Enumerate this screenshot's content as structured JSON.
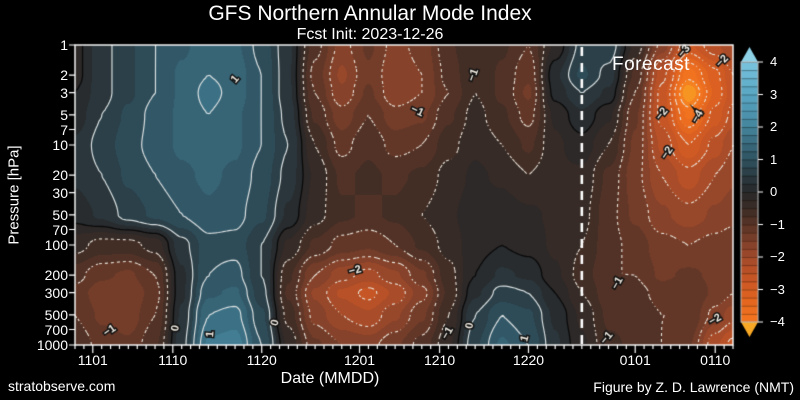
{
  "header": {
    "title": "GFS Northern Annular Mode Index",
    "subtitle": "Fcst Init: 2023-12-26"
  },
  "footer": {
    "left": "stratobserve.com",
    "right": "Figure by Z. D. Lawrence (NMT)"
  },
  "chart_data": {
    "type": "heatmap",
    "title": "GFS Northern Annular Mode Index",
    "subtitle": "Fcst Init: 2023-12-26",
    "xlabel": "Date (MMDD)",
    "ylabel": "Pressure [hPa]",
    "forecast_label": "Forecast",
    "x_day0_date": "2023-10-30",
    "x_total_days": 74,
    "x_minor_every_days": 1,
    "forecast_line_day": 57,
    "x_ticks": [
      {
        "day": 2,
        "label": "1101"
      },
      {
        "day": 11,
        "label": "1110"
      },
      {
        "day": 21,
        "label": "1120"
      },
      {
        "day": 32,
        "label": "1201"
      },
      {
        "day": 41,
        "label": "1210"
      },
      {
        "day": 51,
        "label": "1220"
      },
      {
        "day": 63,
        "label": "0101"
      },
      {
        "day": 72,
        "label": "0110"
      }
    ],
    "y_ticks": [
      {
        "p": 1,
        "label": "1"
      },
      {
        "p": 2,
        "label": "2"
      },
      {
        "p": 3,
        "label": "3"
      },
      {
        "p": 5,
        "label": "5"
      },
      {
        "p": 7,
        "label": "7"
      },
      {
        "p": 10,
        "label": "10"
      },
      {
        "p": 20,
        "label": "20"
      },
      {
        "p": 30,
        "label": "30"
      },
      {
        "p": 50,
        "label": "50"
      },
      {
        "p": 70,
        "label": "70"
      },
      {
        "p": 100,
        "label": "100"
      },
      {
        "p": 200,
        "label": "200"
      },
      {
        "p": 300,
        "label": "300"
      },
      {
        "p": 500,
        "label": "500"
      },
      {
        "p": 700,
        "label": "700"
      },
      {
        "p": 1000,
        "label": "1000"
      }
    ],
    "pressure_levels": [
      1,
      2,
      3,
      5,
      10,
      20,
      50,
      100,
      200,
      300,
      500,
      1000
    ],
    "grid_days": [
      0,
      3,
      6,
      9,
      12,
      15,
      18,
      21,
      24,
      27,
      30,
      33,
      36,
      39,
      42,
      45,
      48,
      51,
      54,
      57,
      60,
      63,
      66,
      69,
      72,
      74
    ],
    "values": [
      [
        -0.1,
        0.4,
        0.7,
        1.0,
        1.2,
        1.4,
        1.3,
        0.9,
        0.3,
        -0.9,
        -1.6,
        -1.2,
        -1.6,
        -1.4,
        -0.8,
        -0.5,
        -0.7,
        -1.0,
        -0.2,
        0.6,
        0.7,
        -0.3,
        -1.6,
        -2.8,
        -2.3,
        -2.0
      ],
      [
        -0.1,
        0.4,
        0.7,
        1.0,
        1.3,
        1.5,
        1.4,
        1.0,
        0.3,
        -1.1,
        -1.8,
        -1.3,
        -1.7,
        -1.5,
        -0.9,
        -0.5,
        -0.8,
        -1.2,
        0.2,
        0.8,
        0.4,
        -0.8,
        -2.4,
        -3.9,
        -3.1,
        -2.5
      ],
      [
        0.0,
        0.4,
        0.7,
        1.0,
        1.3,
        1.6,
        1.4,
        1.0,
        0.3,
        -1.0,
        -1.7,
        -1.2,
        -1.7,
        -1.5,
        -1.0,
        -0.5,
        -0.8,
        -1.3,
        0.1,
        0.5,
        0.2,
        -1.0,
        -2.6,
        -4.5,
        -3.2,
        -2.6
      ],
      [
        0.1,
        0.5,
        0.8,
        1.1,
        1.3,
        1.5,
        1.3,
        1.0,
        0.4,
        -0.8,
        -1.4,
        -1.0,
        -1.4,
        -1.3,
        -0.8,
        -0.4,
        -0.7,
        -1.1,
        -0.2,
        0.2,
        -0.2,
        -1.2,
        -2.6,
        -3.8,
        -2.9,
        -2.4
      ],
      [
        0.3,
        0.6,
        0.9,
        1.1,
        1.3,
        1.4,
        1.3,
        1.0,
        0.5,
        -0.5,
        -1.1,
        -0.8,
        -1.1,
        -1.0,
        -0.6,
        -0.3,
        -0.5,
        -0.8,
        -0.3,
        -0.1,
        -0.5,
        -1.3,
        -2.3,
        -3.0,
        -2.4,
        -2.0
      ],
      [
        0.3,
        0.5,
        0.8,
        1.0,
        1.2,
        1.3,
        1.2,
        0.9,
        0.4,
        -0.3,
        -0.8,
        -0.7,
        -0.8,
        -0.7,
        -0.4,
        -0.2,
        -0.3,
        -0.5,
        -0.3,
        -0.3,
        -0.8,
        -1.4,
        -2.0,
        -2.4,
        -2.0,
        -1.8
      ],
      [
        0.1,
        0.3,
        0.6,
        0.8,
        1.0,
        1.2,
        1.1,
        0.8,
        0.2,
        -0.4,
        -0.7,
        -0.8,
        -0.7,
        -0.5,
        -0.3,
        -0.1,
        -0.1,
        -0.2,
        -0.3,
        -0.4,
        -0.9,
        -1.3,
        -1.7,
        -1.9,
        -1.7,
        -1.6
      ],
      [
        -0.4,
        -0.6,
        -0.6,
        -0.4,
        0.4,
        0.9,
        0.9,
        0.5,
        -0.3,
        -0.8,
        -1.1,
        -1.2,
        -1.0,
        -0.7,
        -0.4,
        -0.1,
        0.0,
        -0.1,
        -0.3,
        -0.5,
        -0.9,
        -1.1,
        -1.4,
        -1.5,
        -1.4,
        -1.3
      ],
      [
        -0.9,
        -1.2,
        -1.3,
        -1.0,
        0.2,
        1.0,
        1.1,
        0.5,
        -0.7,
        -1.5,
        -1.9,
        -2.1,
        -1.8,
        -1.3,
        -0.6,
        0.0,
        0.3,
        0.2,
        -0.2,
        -0.6,
        -1.0,
        -1.0,
        -1.3,
        -1.2,
        -1.3,
        -1.4
      ],
      [
        -1.1,
        -1.4,
        -1.5,
        -1.1,
        0.2,
        1.2,
        1.3,
        0.6,
        -0.8,
        -1.8,
        -2.3,
        -2.6,
        -2.2,
        -1.6,
        -0.7,
        0.2,
        0.6,
        0.5,
        0.0,
        -0.5,
        -0.9,
        -0.9,
        -1.1,
        -1.0,
        -1.3,
        -1.5
      ],
      [
        -1.0,
        -1.3,
        -1.4,
        -1.0,
        0.3,
        1.5,
        1.6,
        0.8,
        -0.6,
        -1.6,
        -2.0,
        -2.2,
        -1.8,
        -1.3,
        -0.5,
        0.5,
        1.0,
        0.8,
        0.2,
        -0.3,
        -0.8,
        -0.8,
        -1.0,
        -1.0,
        -1.6,
        -1.9
      ],
      [
        -0.8,
        -1.1,
        -1.2,
        -0.8,
        0.4,
        1.8,
        1.9,
        1.0,
        -0.3,
        -1.2,
        -1.5,
        -1.6,
        -1.3,
        -0.9,
        -0.3,
        0.7,
        1.3,
        1.0,
        0.3,
        -0.2,
        -0.7,
        -0.8,
        -1.0,
        -1.2,
        -2.2,
        -2.6
      ]
    ],
    "fill_step": 0.25,
    "colormap_stops": [
      [
        -4.6,
        "#f9a825"
      ],
      [
        -4.0,
        "#f4761f"
      ],
      [
        -3.5,
        "#e96a1f"
      ],
      [
        -3.0,
        "#d65d22"
      ],
      [
        -2.5,
        "#c05326"
      ],
      [
        -2.0,
        "#a14a2a"
      ],
      [
        -1.5,
        "#7d402a"
      ],
      [
        -1.0,
        "#5a3427"
      ],
      [
        -0.5,
        "#3b2c25"
      ],
      [
        0.0,
        "#282829"
      ],
      [
        0.5,
        "#2a3a41"
      ],
      [
        1.0,
        "#2f5260"
      ],
      [
        1.5,
        "#3a6b7e"
      ],
      [
        2.0,
        "#44839b"
      ],
      [
        2.5,
        "#4f97b2"
      ],
      [
        3.0,
        "#58a5c2"
      ],
      [
        3.5,
        "#69b5d1"
      ],
      [
        4.0,
        "#7ac4de"
      ],
      [
        4.6,
        "#8ed2e8"
      ]
    ],
    "contour_levels": {
      "negative": [
        -4,
        -3.5,
        -3,
        -2.5,
        -2,
        -1.5,
        -1,
        -0.5
      ],
      "positive": [
        0.5,
        1,
        1.5,
        2
      ],
      "zero": 0
    },
    "contour_colors": {
      "negative": "#eae4da",
      "positive": "#d9dfe0",
      "zero": "#0a0a0a"
    },
    "contour_labels": [
      {
        "t": "1",
        "d": 18,
        "p": 2.2,
        "rot": -50
      },
      {
        "t": "−1",
        "d": 38.5,
        "p": 4.6,
        "rot": 25
      },
      {
        "t": "−1",
        "d": 44.8,
        "p": 2.0,
        "rot": -70
      },
      {
        "t": "−2",
        "d": 31.5,
        "p": 180,
        "rot": -15
      },
      {
        "t": "0",
        "d": 11.3,
        "p": 680,
        "rot": -80
      },
      {
        "t": "1",
        "d": 15.2,
        "p": 780,
        "rot": -85
      },
      {
        "t": "0",
        "d": 22.5,
        "p": 600,
        "rot": -75
      },
      {
        "t": "−1",
        "d": 3.9,
        "p": 720,
        "rot": -35
      },
      {
        "t": "0",
        "d": 44.4,
        "p": 640,
        "rot": -80
      },
      {
        "t": "−1",
        "d": 41.9,
        "p": 760,
        "rot": -60
      },
      {
        "t": "1",
        "d": 50.6,
        "p": 860,
        "rot": -75
      },
      {
        "t": "−1",
        "d": 59.8,
        "p": 850,
        "rot": -50
      },
      {
        "t": "−1",
        "d": 61,
        "p": 240,
        "rot": -60
      },
      {
        "t": "−2",
        "d": 72,
        "p": 560,
        "rot": -30
      },
      {
        "t": "−2",
        "d": 66,
        "p": 4.9,
        "rot": -50
      },
      {
        "t": "−4",
        "d": 70,
        "p": 5.2,
        "rot": -60
      },
      {
        "t": "−2",
        "d": 72.8,
        "p": 1.45,
        "rot": -45
      },
      {
        "t": "−2",
        "d": 66.6,
        "p": 12,
        "rot": -55
      },
      {
        "t": "−3",
        "d": 68.5,
        "p": 1.15,
        "rot": -50
      }
    ],
    "colorbar": {
      "min": -4,
      "max": 4,
      "step": 0.25,
      "over_color": "#8ed2e8",
      "under_color": "#f9a825",
      "ticks": [
        {
          "v": 4,
          "label": "4"
        },
        {
          "v": 3,
          "label": "3"
        },
        {
          "v": 2,
          "label": "2"
        },
        {
          "v": 1,
          "label": "1"
        },
        {
          "v": 0,
          "label": "0"
        },
        {
          "v": -1,
          "label": "−1"
        },
        {
          "v": -2,
          "label": "−2"
        },
        {
          "v": -3,
          "label": "−3"
        },
        {
          "v": -4,
          "label": "−4"
        }
      ]
    }
  }
}
